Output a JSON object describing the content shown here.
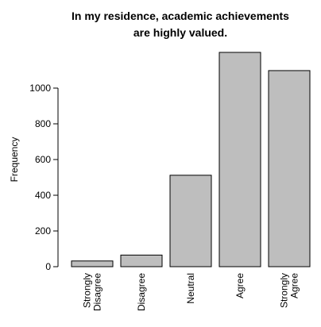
{
  "chart_data": {
    "type": "bar",
    "title_lines": [
      "In my residence, academic achievements",
      "are highly valued."
    ],
    "ylabel": "Frequency",
    "xlabel": "",
    "categories": [
      [
        "Strongly",
        "Disagree"
      ],
      [
        "Disagree"
      ],
      [
        "Neutral"
      ],
      [
        "Agree"
      ],
      [
        "Strongly",
        "Agree"
      ]
    ],
    "values": [
      32,
      65,
      512,
      1200,
      1098
    ],
    "ylim": [
      0,
      1200
    ],
    "yticks": [
      0,
      200,
      400,
      600,
      800,
      1000
    ],
    "grid": false,
    "colors": {
      "bar_fill": "#bebebe",
      "bar_stroke": "#000000"
    }
  }
}
